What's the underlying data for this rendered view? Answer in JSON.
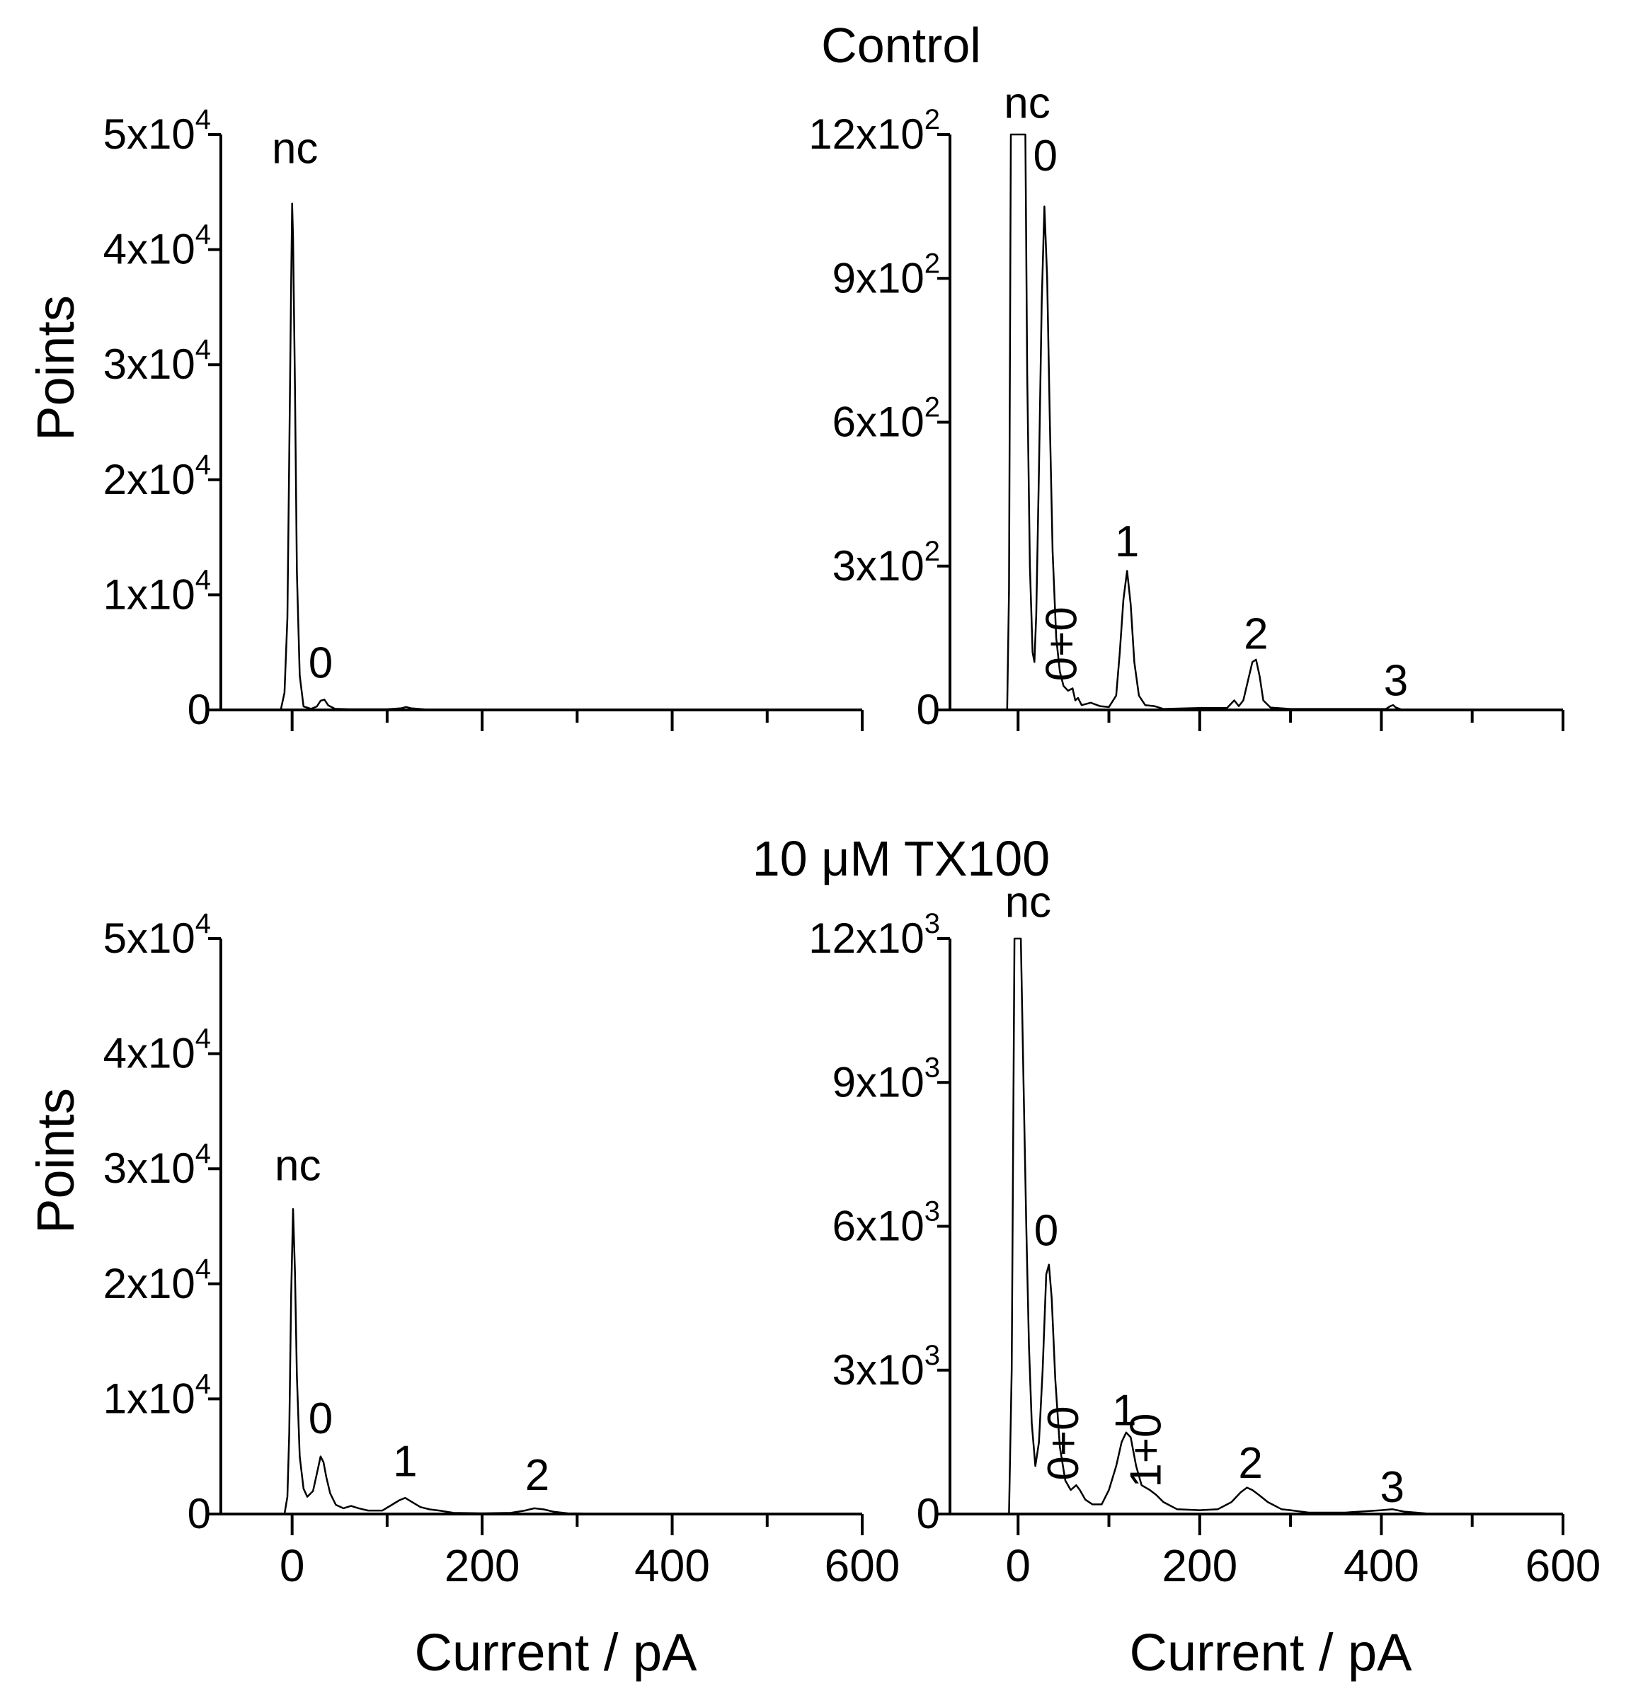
{
  "figure": {
    "top_title": "Control",
    "bottom_title": "10 μM TX100"
  },
  "chart_data": [
    {
      "id": "control-full",
      "type": "line",
      "title": "Control",
      "xlabel": "",
      "ylabel": "Points",
      "xlim": [
        -75,
        600
      ],
      "ylim": [
        0,
        50000
      ],
      "x_ticks": [
        0,
        200,
        400,
        600
      ],
      "x_tick_labels": [],
      "y_ticks": [
        0,
        10000,
        20000,
        30000,
        40000,
        50000
      ],
      "y_tick_labels": [
        {
          "mant": "0",
          "exp": ""
        },
        {
          "mant": "1x10",
          "exp": "4"
        },
        {
          "mant": "2x10",
          "exp": "4"
        },
        {
          "mant": "3x10",
          "exp": "4"
        },
        {
          "mant": "4x10",
          "exp": "4"
        },
        {
          "mant": "5x10",
          "exp": "4"
        }
      ],
      "series": [
        {
          "values": [
            [
              -75,
              0
            ],
            [
              -12,
              0
            ],
            [
              -8,
              1500
            ],
            [
              -5,
              8000
            ],
            [
              -3,
              22000
            ],
            [
              -1,
              37000
            ],
            [
              0,
              44000
            ],
            [
              1,
              41000
            ],
            [
              3,
              28000
            ],
            [
              5,
              12000
            ],
            [
              8,
              3000
            ],
            [
              12,
              300
            ],
            [
              20,
              100
            ],
            [
              26,
              300
            ],
            [
              30,
              800
            ],
            [
              34,
              900
            ],
            [
              38,
              400
            ],
            [
              45,
              100
            ],
            [
              60,
              60
            ],
            [
              100,
              60
            ],
            [
              115,
              150
            ],
            [
              120,
              260
            ],
            [
              125,
              150
            ],
            [
              140,
              40
            ],
            [
              200,
              20
            ],
            [
              300,
              10
            ],
            [
              400,
              10
            ],
            [
              600,
              0
            ]
          ]
        }
      ],
      "annotations": [
        {
          "text": "nc",
          "x": 3,
          "y": 47500,
          "rotate": false
        },
        {
          "text": "0",
          "x": 30,
          "y": 2800,
          "rotate": false
        }
      ]
    },
    {
      "id": "control-zoom",
      "type": "line",
      "title": "",
      "xlabel": "",
      "ylabel": "",
      "xlim": [
        -75,
        600
      ],
      "ylim": [
        0,
        1200
      ],
      "x_ticks": [
        0,
        200,
        400,
        600
      ],
      "x_tick_labels": [],
      "y_ticks": [
        0,
        300,
        600,
        900,
        1200
      ],
      "y_tick_labels": [
        {
          "mant": "0",
          "exp": ""
        },
        {
          "mant": "3x10",
          "exp": "2"
        },
        {
          "mant": "6x10",
          "exp": "2"
        },
        {
          "mant": "9x10",
          "exp": "2"
        },
        {
          "mant": "12x10",
          "exp": "2"
        }
      ],
      "series": [
        {
          "values": [
            [
              -75,
              0
            ],
            [
              -12,
              0
            ],
            [
              -10,
              250
            ],
            [
              -8,
              1200
            ],
            [
              8,
              1200
            ],
            [
              10,
              700
            ],
            [
              13,
              300
            ],
            [
              16,
              120
            ],
            [
              18,
              100
            ],
            [
              20,
              200
            ],
            [
              23,
              500
            ],
            [
              26,
              850
            ],
            [
              29,
              1050
            ],
            [
              32,
              900
            ],
            [
              35,
              600
            ],
            [
              38,
              330
            ],
            [
              42,
              150
            ],
            [
              46,
              80
            ],
            [
              50,
              50
            ],
            [
              55,
              40
            ],
            [
              60,
              45
            ],
            [
              63,
              20
            ],
            [
              66,
              25
            ],
            [
              70,
              10
            ],
            [
              80,
              15
            ],
            [
              90,
              8
            ],
            [
              100,
              6
            ],
            [
              108,
              30
            ],
            [
              112,
              120
            ],
            [
              116,
              230
            ],
            [
              120,
              290
            ],
            [
              124,
              220
            ],
            [
              128,
              100
            ],
            [
              133,
              30
            ],
            [
              140,
              10
            ],
            [
              150,
              8
            ],
            [
              160,
              2
            ],
            [
              200,
              4
            ],
            [
              230,
              4
            ],
            [
              238,
              20
            ],
            [
              243,
              8
            ],
            [
              248,
              20
            ],
            [
              253,
              60
            ],
            [
              258,
              100
            ],
            [
              262,
              105
            ],
            [
              266,
              70
            ],
            [
              270,
              20
            ],
            [
              278,
              5
            ],
            [
              300,
              2
            ],
            [
              350,
              2
            ],
            [
              405,
              2
            ],
            [
              410,
              8
            ],
            [
              413,
              10
            ],
            [
              416,
              5
            ],
            [
              422,
              1
            ],
            [
              600,
              0
            ]
          ]
        }
      ],
      "annotations": [
        {
          "text": "nc",
          "x": 10,
          "y": 1235,
          "rotate": false
        },
        {
          "text": "0",
          "x": 30,
          "y": 1125,
          "rotate": false
        },
        {
          "text": "0+0",
          "x": 64,
          "y": 60,
          "rotate": true
        },
        {
          "text": "1",
          "x": 120,
          "y": 320,
          "rotate": false
        },
        {
          "text": "2",
          "x": 262,
          "y": 128,
          "rotate": false
        },
        {
          "text": "3",
          "x": 416,
          "y": 30,
          "rotate": false
        }
      ]
    },
    {
      "id": "tx100-full",
      "type": "line",
      "title": "10 μM TX100",
      "xlabel": "Current / pA",
      "ylabel": "Points",
      "xlim": [
        -75,
        600
      ],
      "ylim": [
        0,
        50000
      ],
      "x_ticks": [
        0,
        200,
        400,
        600
      ],
      "x_tick_labels": [
        "0",
        "200",
        "400",
        "600"
      ],
      "y_ticks": [
        0,
        10000,
        20000,
        30000,
        40000,
        50000
      ],
      "y_tick_labels": [
        {
          "mant": "0",
          "exp": ""
        },
        {
          "mant": "1x10",
          "exp": "4"
        },
        {
          "mant": "2x10",
          "exp": "4"
        },
        {
          "mant": "3x10",
          "exp": "4"
        },
        {
          "mant": "4x10",
          "exp": "4"
        },
        {
          "mant": "5x10",
          "exp": "4"
        }
      ],
      "series": [
        {
          "values": [
            [
              -75,
              0
            ],
            [
              -8,
              0
            ],
            [
              -5,
              1500
            ],
            [
              -3,
              7000
            ],
            [
              -1,
              19000
            ],
            [
              1,
              26500
            ],
            [
              3,
              21000
            ],
            [
              5,
              12000
            ],
            [
              8,
              5000
            ],
            [
              12,
              2200
            ],
            [
              16,
              1500
            ],
            [
              22,
              2000
            ],
            [
              26,
              3500
            ],
            [
              30,
              5000
            ],
            [
              33,
              4500
            ],
            [
              36,
              3200
            ],
            [
              40,
              1800
            ],
            [
              46,
              800
            ],
            [
              54,
              500
            ],
            [
              62,
              700
            ],
            [
              70,
              500
            ],
            [
              80,
              300
            ],
            [
              95,
              300
            ],
            [
              105,
              800
            ],
            [
              113,
              1200
            ],
            [
              119,
              1400
            ],
            [
              125,
              1100
            ],
            [
              135,
              600
            ],
            [
              145,
              400
            ],
            [
              155,
              300
            ],
            [
              170,
              100
            ],
            [
              200,
              60
            ],
            [
              230,
              100
            ],
            [
              245,
              300
            ],
            [
              255,
              500
            ],
            [
              265,
              400
            ],
            [
              275,
              200
            ],
            [
              290,
              60
            ],
            [
              350,
              10
            ],
            [
              600,
              0
            ]
          ]
        }
      ],
      "annotations": [
        {
          "text": "nc",
          "x": 6,
          "y": 29000,
          "rotate": false
        },
        {
          "text": "0",
          "x": 30,
          "y": 7000,
          "rotate": false
        },
        {
          "text": "1",
          "x": 119,
          "y": 3300,
          "rotate": false
        },
        {
          "text": "2",
          "x": 258,
          "y": 2100,
          "rotate": false
        }
      ]
    },
    {
      "id": "tx100-zoom",
      "type": "line",
      "title": "",
      "xlabel": "Current / pA",
      "ylabel": "",
      "xlim": [
        -75,
        600
      ],
      "ylim": [
        0,
        12000
      ],
      "x_ticks": [
        0,
        200,
        400,
        600
      ],
      "x_tick_labels": [
        "0",
        "200",
        "400",
        "600"
      ],
      "y_ticks": [
        0,
        3000,
        6000,
        9000,
        12000
      ],
      "y_tick_labels": [
        {
          "mant": "0",
          "exp": ""
        },
        {
          "mant": "3x10",
          "exp": "3"
        },
        {
          "mant": "6x10",
          "exp": "3"
        },
        {
          "mant": "9x10",
          "exp": "3"
        },
        {
          "mant": "12x10",
          "exp": "3"
        }
      ],
      "series": [
        {
          "values": [
            [
              -75,
              0
            ],
            [
              -10,
              0
            ],
            [
              -7,
              3000
            ],
            [
              -4,
              12000
            ],
            [
              3,
              12000
            ],
            [
              6,
              9000
            ],
            [
              9,
              6000
            ],
            [
              12,
              3500
            ],
            [
              15,
              1900
            ],
            [
              19,
              1000
            ],
            [
              23,
              1500
            ],
            [
              27,
              3000
            ],
            [
              31,
              5000
            ],
            [
              34,
              5200
            ],
            [
              37,
              4500
            ],
            [
              41,
              2800
            ],
            [
              46,
              1400
            ],
            [
              52,
              700
            ],
            [
              58,
              500
            ],
            [
              64,
              600
            ],
            [
              68,
              500
            ],
            [
              74,
              300
            ],
            [
              82,
              200
            ],
            [
              92,
              200
            ],
            [
              100,
              500
            ],
            [
              108,
              1000
            ],
            [
              114,
              1500
            ],
            [
              119,
              1700
            ],
            [
              124,
              1600
            ],
            [
              130,
              1000
            ],
            [
              136,
              600
            ],
            [
              145,
              500
            ],
            [
              152,
              400
            ],
            [
              160,
              250
            ],
            [
              175,
              100
            ],
            [
              200,
              80
            ],
            [
              220,
              100
            ],
            [
              235,
              250
            ],
            [
              245,
              450
            ],
            [
              252,
              550
            ],
            [
              258,
              500
            ],
            [
              265,
              400
            ],
            [
              275,
              250
            ],
            [
              290,
              100
            ],
            [
              300,
              80
            ],
            [
              320,
              30
            ],
            [
              360,
              30
            ],
            [
              385,
              60
            ],
            [
              400,
              80
            ],
            [
              412,
              100
            ],
            [
              425,
              50
            ],
            [
              450,
              10
            ],
            [
              600,
              0
            ]
          ]
        }
      ],
      "annotations": [
        {
          "text": "nc",
          "x": 11,
          "y": 12450,
          "rotate": false
        },
        {
          "text": "0",
          "x": 31,
          "y": 5600,
          "rotate": false
        },
        {
          "text": "0+0",
          "x": 66,
          "y": 700,
          "rotate": true
        },
        {
          "text": "1",
          "x": 117,
          "y": 1850,
          "rotate": false
        },
        {
          "text": "1+0",
          "x": 157,
          "y": 550,
          "rotate": true
        },
        {
          "text": "2",
          "x": 256,
          "y": 750,
          "rotate": false
        },
        {
          "text": "3",
          "x": 412,
          "y": 250,
          "rotate": false
        }
      ]
    }
  ]
}
